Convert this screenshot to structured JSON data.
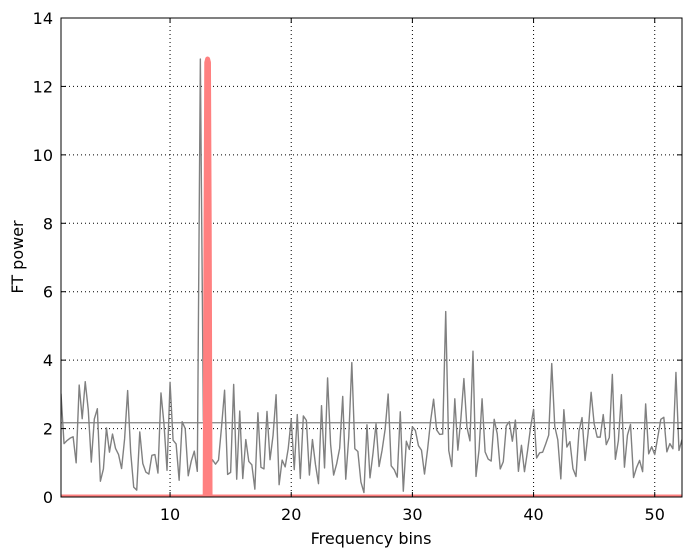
{
  "chart_data": {
    "type": "line",
    "title": "",
    "xlabel": "Frequency bins",
    "ylabel": "FT power",
    "xlim": [
      1,
      52.25
    ],
    "ylim": [
      0,
      14
    ],
    "xticks": [
      10,
      20,
      30,
      40,
      50
    ],
    "xtick_labels": [
      "10",
      "20",
      "30",
      "40",
      "50"
    ],
    "yticks": [
      0,
      2,
      4,
      6,
      8,
      10,
      12,
      14
    ],
    "ytick_labels": [
      "0",
      "2",
      "4",
      "6",
      "8",
      "10",
      "12",
      "14"
    ],
    "grid": true,
    "legend": "none",
    "colors": {
      "noise": "#808080",
      "signal": "#ff8080",
      "axes": "#000000",
      "grid": "#000000"
    },
    "series": [
      {
        "values": [
          3.02,
          1.56,
          1.65,
          1.72,
          1.76,
          1.0,
          3.27,
          2.29,
          3.37,
          2.55,
          1.02,
          2.28,
          2.58,
          0.46,
          0.82,
          2.02,
          1.31,
          1.84,
          1.42,
          1.24,
          0.83,
          1.7,
          3.11,
          1.31,
          0.29,
          0.2,
          1.9,
          0.98,
          0.73,
          0.67,
          1.22,
          1.24,
          0.7,
          3.04,
          2.13,
          0.78,
          3.35,
          1.66,
          1.55,
          0.49,
          2.2,
          2.0,
          0.62,
          1.05,
          1.34,
          0.75,
          12.8,
          2.25,
          1.68,
          0.79,
          1.09,
          0.96,
          1.08,
          2.05,
          3.12,
          0.66,
          0.72,
          3.29,
          0.52,
          2.51,
          0.54,
          1.68,
          1.04,
          0.94,
          0.23,
          2.46,
          0.87,
          0.82,
          2.5,
          1.09,
          1.8,
          2.99,
          0.36,
          1.08,
          0.88,
          1.41,
          2.27,
          0.8,
          2.41,
          0.54,
          2.37,
          2.24,
          0.64,
          1.68,
          0.95,
          0.39,
          2.67,
          0.85,
          3.48,
          1.54,
          0.64,
          0.97,
          1.43,
          2.94,
          0.52,
          1.76,
          3.93,
          1.41,
          1.33,
          0.44,
          0.13,
          2.11,
          0.56,
          1.28,
          2.14,
          0.89,
          1.37,
          1.98,
          3.01,
          0.91,
          0.8,
          0.58,
          2.49,
          0.17,
          1.63,
          1.39,
          2.05,
          1.94,
          1.5,
          1.37,
          0.67,
          1.38,
          2.22,
          2.86,
          1.96,
          1.83,
          1.84,
          5.42,
          1.36,
          0.89,
          2.87,
          1.37,
          2.28,
          3.46,
          2.04,
          1.64,
          4.26,
          0.6,
          1.38,
          2.87,
          1.32,
          1.11,
          1.05,
          2.27,
          1.85,
          0.82,
          1.03,
          2.08,
          2.2,
          1.63,
          2.25,
          0.75,
          1.51,
          0.74,
          1.34,
          2.03,
          2.56,
          1.14,
          1.29,
          1.31,
          1.55,
          1.81,
          3.9,
          2.06,
          1.67,
          0.53,
          2.55,
          1.46,
          1.62,
          0.83,
          0.6,
          1.93,
          2.32,
          1.07,
          1.87,
          3.06,
          2.14,
          1.75,
          1.75,
          2.41,
          1.53,
          1.74,
          3.58,
          1.1,
          1.65,
          2.99,
          0.87,
          1.81,
          2.12,
          0.57,
          0.86,
          1.07,
          0.74,
          2.72,
          1.26,
          1.47,
          1.24,
          1.75,
          2.27,
          2.33,
          1.32,
          1.56,
          1.41,
          3.64,
          1.36,
          1.68
        ]
      },
      {
        "x": [
          1,
          12.9,
          12.97,
          13.03,
          13.1,
          13.17,
          13.23,
          13.3,
          52.25
        ],
        "values": [
          0,
          0,
          8.0,
          12.7,
          12.8,
          12.7,
          8.0,
          0,
          0
        ]
      }
    ],
    "reference_line_y": 2.17
  }
}
